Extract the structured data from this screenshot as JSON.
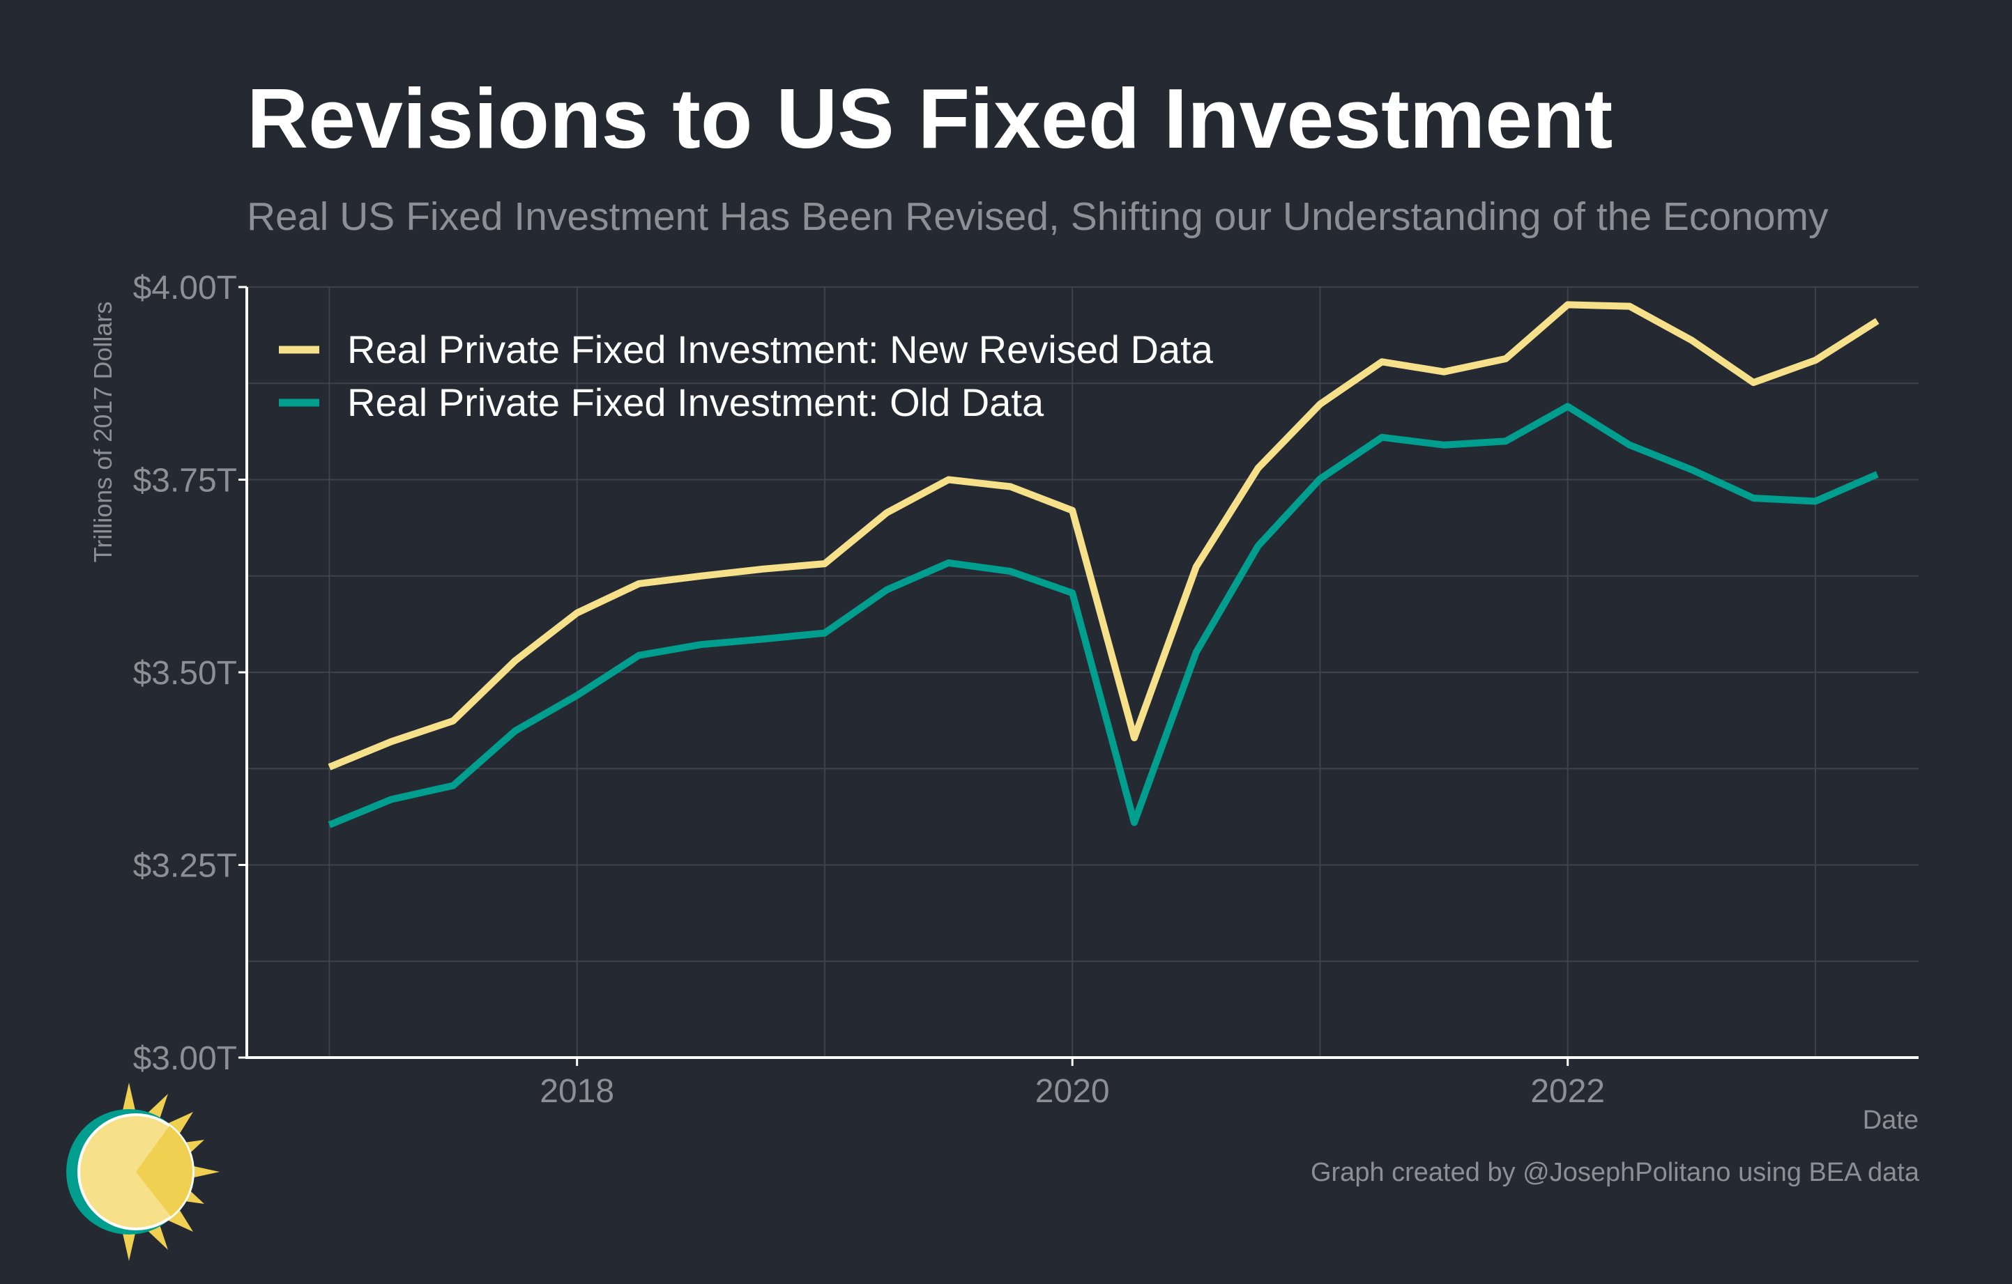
{
  "title": "Revisions to US Fixed Investment",
  "subtitle": "Real US Fixed Investment Has Been Revised, Shifting our Understanding of the Economy",
  "credit": "Graph created by @JosephPolitano using BEA data",
  "colors": {
    "background": "#252932",
    "new_series": "#f7e08a",
    "old_series": "#009e8e",
    "grid": "#3e424b",
    "text_muted": "#8c8f96"
  },
  "chart_data": {
    "type": "line",
    "xlabel": "Date",
    "ylabel": "Trillions of 2017 Dollars",
    "ylim": [
      3.0,
      4.0
    ],
    "xlim": [
      "2016-09",
      "2023-06"
    ],
    "y_ticks": [
      3.0,
      3.25,
      3.5,
      3.75,
      4.0
    ],
    "y_tick_labels": [
      "$3.00T",
      "$3.25T",
      "$3.50T",
      "$3.75T",
      "$4.00T"
    ],
    "x_ticks": [
      2018,
      2020,
      2022
    ],
    "x_tick_labels": [
      "2018",
      "2020",
      "2022"
    ],
    "grid": true,
    "legend_position": "top-left",
    "x": [
      "2017-01",
      "2017-04",
      "2017-07",
      "2017-10",
      "2018-01",
      "2018-04",
      "2018-07",
      "2018-10",
      "2019-01",
      "2019-04",
      "2019-07",
      "2019-10",
      "2020-01",
      "2020-04",
      "2020-07",
      "2020-10",
      "2021-01",
      "2021-04",
      "2021-07",
      "2021-10",
      "2022-01",
      "2022-04",
      "2022-07",
      "2022-10",
      "2023-01",
      "2023-04"
    ],
    "series": [
      {
        "name": "Real Private Fixed Investment: New Revised Data",
        "color": "#f7e08a",
        "values": [
          3.377,
          3.41,
          3.437,
          3.515,
          3.577,
          3.615,
          3.625,
          3.634,
          3.641,
          3.707,
          3.75,
          3.741,
          3.71,
          3.415,
          3.637,
          3.765,
          3.848,
          3.903,
          3.89,
          3.907,
          3.977,
          3.975,
          3.931,
          3.876,
          3.905,
          3.956
        ]
      },
      {
        "name": "Real Private Fixed Investment: Old Data",
        "color": "#009e8e",
        "values": [
          3.302,
          3.335,
          3.353,
          3.424,
          3.47,
          3.522,
          3.536,
          3.543,
          3.551,
          3.607,
          3.642,
          3.631,
          3.603,
          3.305,
          3.526,
          3.664,
          3.751,
          3.805,
          3.795,
          3.8,
          3.845,
          3.795,
          3.763,
          3.726,
          3.722,
          3.757
        ]
      }
    ]
  }
}
